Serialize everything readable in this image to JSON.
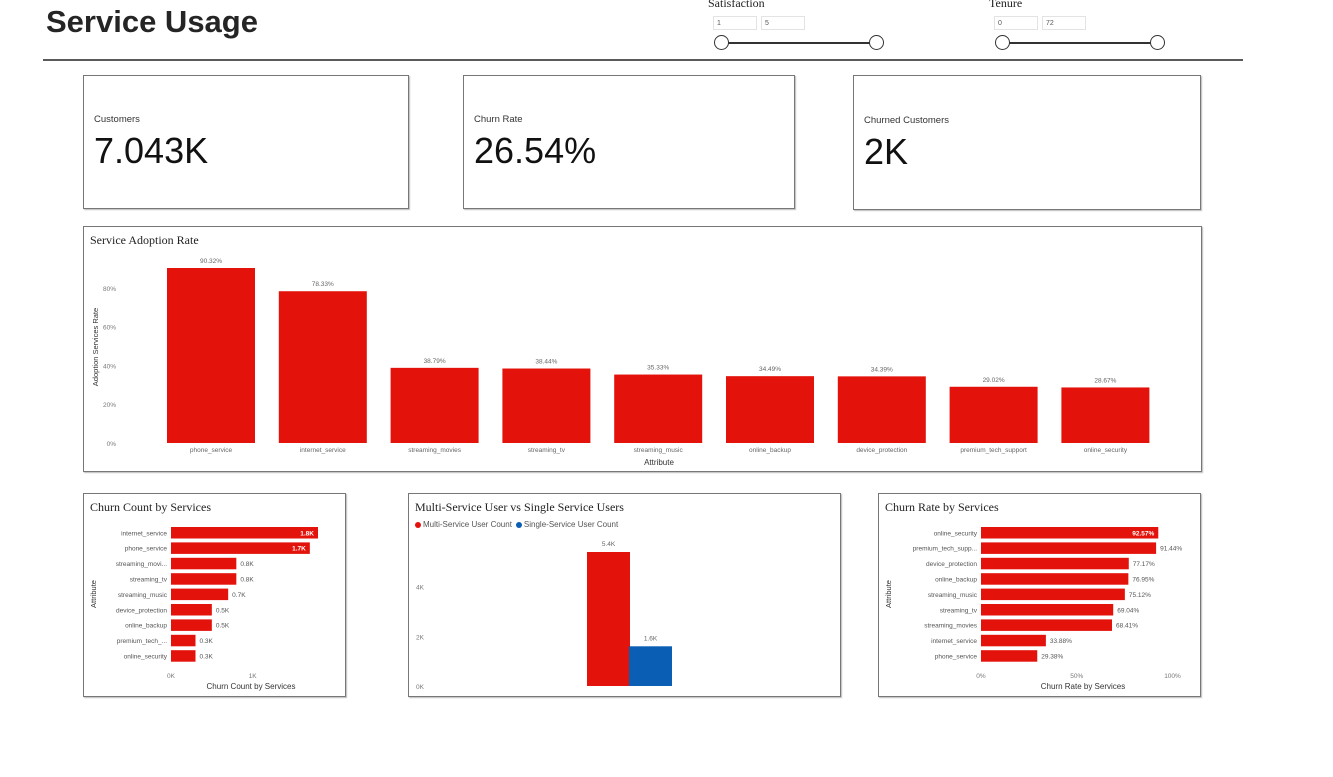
{
  "page": {
    "title": "Service Usage"
  },
  "slicers": {
    "satisfaction": {
      "label": "Satisfaction",
      "min": "1",
      "max": "5"
    },
    "tenure": {
      "label": "Tenure",
      "min": "0",
      "max": "72"
    }
  },
  "kpis": {
    "customers": {
      "label": "Customers",
      "value": "7.043K"
    },
    "churn_rate": {
      "label": "Churn Rate",
      "value": "26.54%"
    },
    "churned": {
      "label": "Churned Customers",
      "value": "2K"
    }
  },
  "colors": {
    "red": "#e3120b",
    "blue": "#0a5fb4"
  },
  "chart_data": [
    {
      "id": "adoption",
      "type": "bar",
      "title": "Service Adoption Rate",
      "xlabel": "Attribute",
      "ylabel": "Adoption Services Rate",
      "categories": [
        "phone_service",
        "internet_service",
        "streaming_movies",
        "streaming_tv",
        "streaming_music",
        "online_backup",
        "device_protection",
        "premium_tech_support",
        "online_security"
      ],
      "values": [
        90.32,
        78.33,
        38.79,
        38.44,
        35.33,
        34.49,
        34.39,
        29.02,
        28.67
      ],
      "labels": [
        "90.32%",
        "78.33%",
        "38.79%",
        "38.44%",
        "35.33%",
        "34.49%",
        "34.39%",
        "29.02%",
        "28.67%"
      ],
      "ylim": [
        0,
        90.32
      ],
      "yticks": [
        0,
        20,
        40,
        60,
        80
      ],
      "ytick_labels": [
        "0%",
        "20%",
        "40%",
        "60%",
        "80%"
      ],
      "grid": false
    },
    {
      "id": "churn_count",
      "type": "bar",
      "orientation": "horizontal",
      "title": "Churn Count by Services",
      "xlabel": "Churn Count by Services",
      "ylabel": "Attribute",
      "categories": [
        "internet_service",
        "phone_service",
        "streaming_movi...",
        "streaming_tv",
        "streaming_music",
        "device_protection",
        "online_backup",
        "premium_tech_...",
        "online_security"
      ],
      "values": [
        1.8,
        1.7,
        0.8,
        0.8,
        0.7,
        0.5,
        0.5,
        0.3,
        0.3
      ],
      "labels": [
        "1.8K",
        "1.7K",
        "0.8K",
        "0.8K",
        "0.7K",
        "0.5K",
        "0.5K",
        "0.3K",
        "0.3K"
      ],
      "xlim": [
        0,
        1.8
      ],
      "xticks": [
        0,
        1
      ],
      "xtick_labels": [
        "0K",
        "1K"
      ]
    },
    {
      "id": "multi_single",
      "type": "bar",
      "title": "Multi-Service User vs Single Service Users",
      "series": [
        {
          "name": "Multi-Service User Count",
          "value": 5.4,
          "label": "5.4K"
        },
        {
          "name": "Single-Service User Count",
          "value": 1.6,
          "label": "1.6K"
        }
      ],
      "ylim": [
        0,
        5.4
      ],
      "yticks": [
        0,
        2,
        4
      ],
      "ytick_labels": [
        "0K",
        "2K",
        "4K"
      ],
      "legend": "top-left"
    },
    {
      "id": "churn_rate",
      "type": "bar",
      "orientation": "horizontal",
      "title": "Churn Rate by Services",
      "xlabel": "Churn Rate by Services",
      "ylabel": "Attribute",
      "categories": [
        "online_security",
        "premium_tech_supp...",
        "device_protection",
        "online_backup",
        "streaming_music",
        "streaming_tv",
        "streaming_movies",
        "internet_service",
        "phone_service"
      ],
      "values": [
        92.57,
        91.44,
        77.17,
        76.95,
        75.12,
        69.04,
        68.41,
        33.88,
        29.38
      ],
      "labels": [
        "92.57%",
        "91.44%",
        "77.17%",
        "76.95%",
        "75.12%",
        "69.04%",
        "68.41%",
        "33.88%",
        "29.38%"
      ],
      "xlim": [
        0,
        100
      ],
      "xticks": [
        0,
        50,
        100
      ],
      "xtick_labels": [
        "0%",
        "50%",
        "100%"
      ]
    }
  ]
}
